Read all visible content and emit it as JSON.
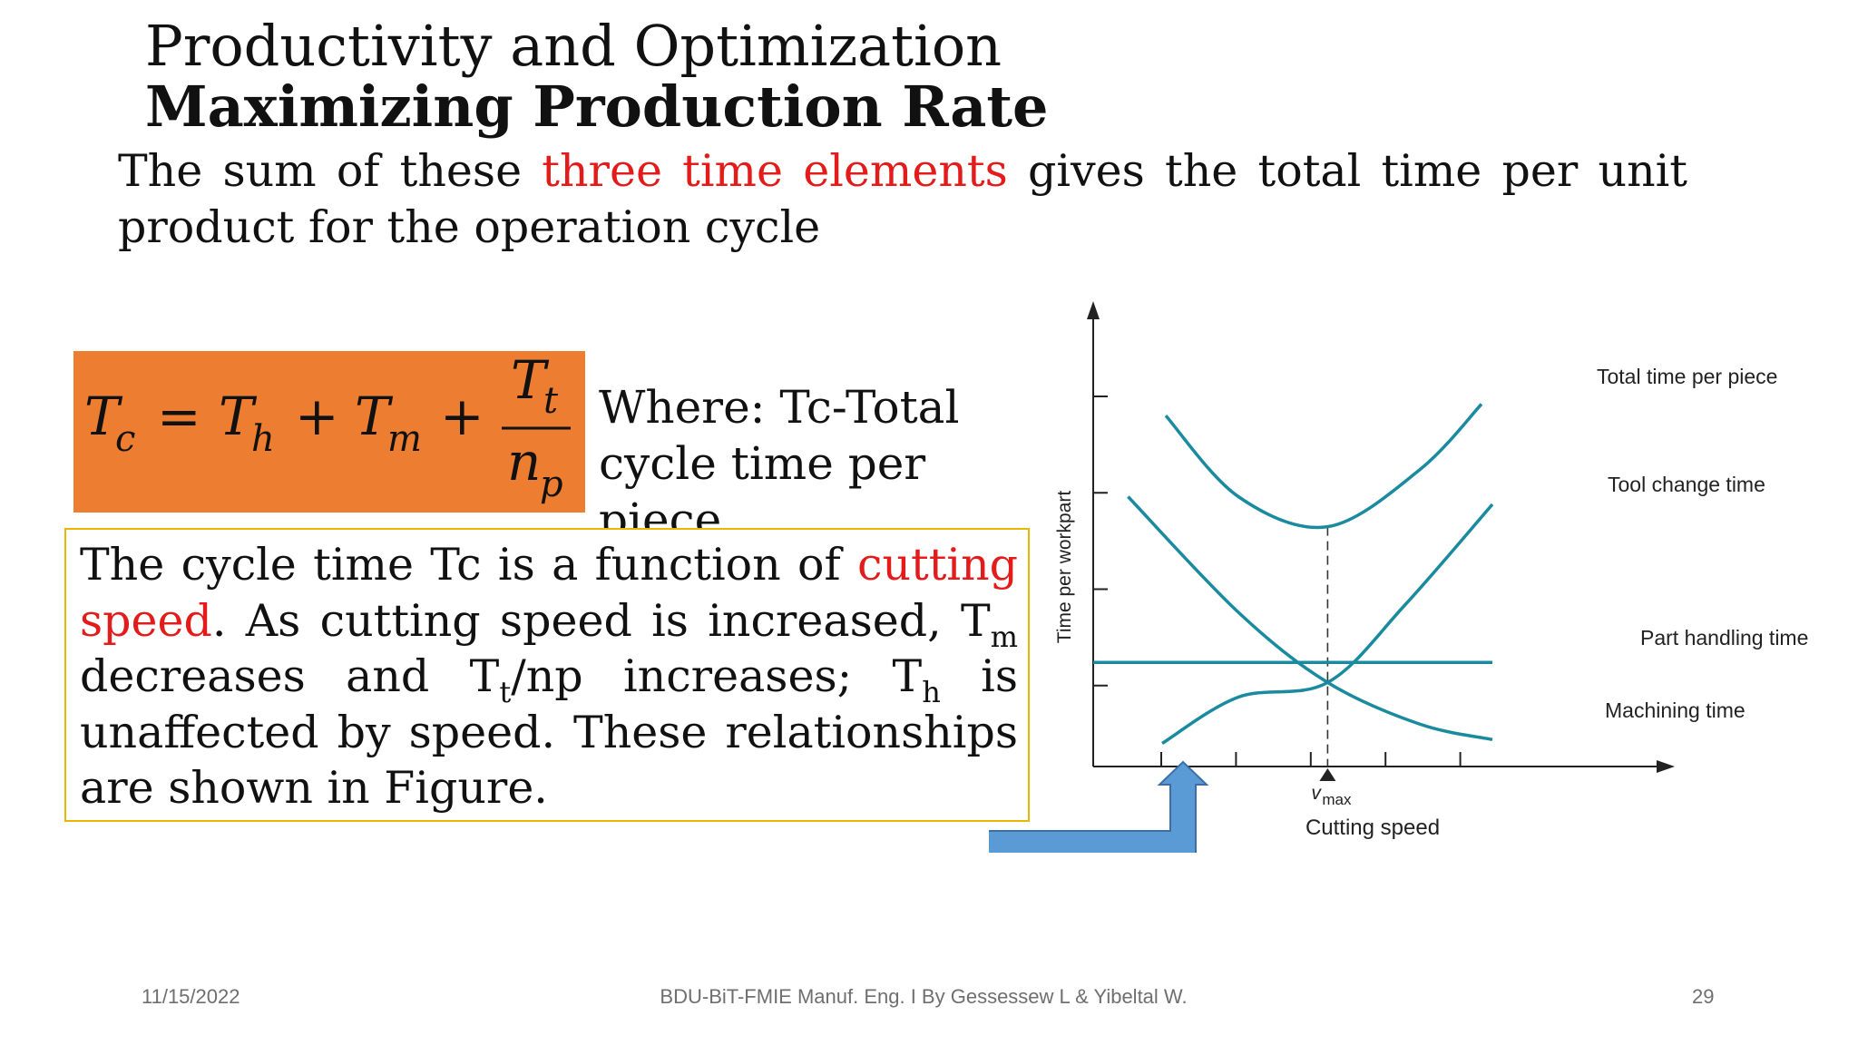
{
  "header": {
    "title_line1": "Productivity and Optimization",
    "title_line2": "Maximizing Production Rate"
  },
  "intro": {
    "before": "The sum of these ",
    "highlight": "three time elements",
    "after": " gives the total time per unit product for the operation cycle"
  },
  "formula": {
    "lhs_main": "T",
    "lhs_sub": "c",
    "term1_main": "T",
    "term1_sub": "h",
    "term2_main": "T",
    "term2_sub": "m",
    "num_main": "T",
    "num_sub": "t",
    "den_main": "n",
    "den_sub": "p",
    "equals": "=",
    "plus": "+"
  },
  "where_text": "Where: Tc-Total cycle time per piece",
  "cycle": {
    "p1": "The cycle time Tc is a function of ",
    "hl1": "cutting speed",
    "p2": ". As cutting speed is increased, T",
    "sub_m": "m",
    "p3": " decreases and T",
    "sub_t": "t",
    "p4": "/np increases; T",
    "sub_h": "h",
    "p5": " is unaffected by speed. These relationships are shown in Figure."
  },
  "chart_data": {
    "type": "line",
    "xlabel": "Cutting speed",
    "ylabel": "Time per workpart",
    "x_marker": {
      "label_main": "v",
      "label_sub": "max"
    },
    "xlim": [
      0,
      6
    ],
    "ylim": [
      0,
      6
    ],
    "series": [
      {
        "name": "Total time per piece",
        "x": [
          1.0,
          2.0,
          3.23,
          4.5,
          5.35
        ],
        "y": [
          4.55,
          3.5,
          3.11,
          3.85,
          4.7
        ]
      },
      {
        "name": "Tool change time",
        "x": [
          0.95,
          2.0,
          3.23,
          4.3,
          5.5
        ],
        "y": [
          0.3,
          0.9,
          1.09,
          2.1,
          3.4
        ]
      },
      {
        "name": "Part handling time",
        "x": [
          0.0,
          5.5
        ],
        "y": [
          1.35,
          1.35
        ]
      },
      {
        "name": "Machining time",
        "x": [
          0.48,
          2.0,
          3.23,
          4.5,
          5.5
        ],
        "y": [
          3.5,
          2.0,
          1.09,
          0.55,
          0.35
        ]
      }
    ]
  },
  "colors": {
    "accent_red": "#e31b1b",
    "formula_bg": "#ed7d31",
    "box_border": "#e6b800",
    "curve": "#1a8a9e",
    "arrow": "#5b9bd5"
  },
  "footer": {
    "date": "11/15/2022",
    "center": "BDU-BiT-FMIE  Manuf. Eng. I By Gessessew L & Yibeltal W.",
    "page": "29"
  }
}
